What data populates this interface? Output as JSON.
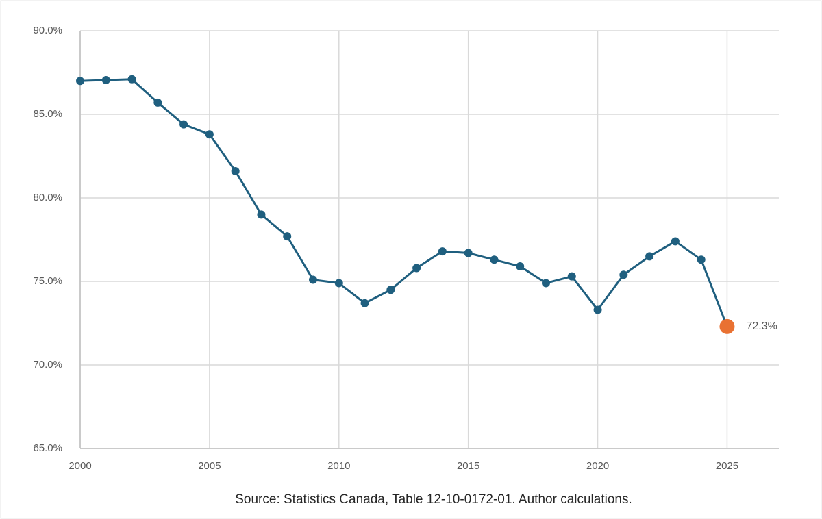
{
  "chart_data": {
    "type": "line",
    "x": [
      2000,
      2001,
      2002,
      2003,
      2004,
      2005,
      2006,
      2007,
      2008,
      2009,
      2010,
      2011,
      2012,
      2013,
      2014,
      2015,
      2016,
      2017,
      2018,
      2019,
      2020,
      2021,
      2022,
      2023,
      2024,
      2025
    ],
    "values": [
      87.0,
      87.05,
      87.1,
      85.7,
      84.4,
      83.8,
      81.6,
      79.0,
      77.7,
      75.1,
      74.9,
      73.7,
      74.5,
      75.8,
      76.8,
      76.7,
      76.3,
      75.9,
      74.9,
      75.3,
      73.3,
      75.4,
      76.5,
      77.4,
      76.3,
      72.3
    ],
    "value_labels": [
      null,
      null,
      null,
      null,
      null,
      null,
      null,
      null,
      null,
      null,
      null,
      null,
      null,
      null,
      null,
      null,
      null,
      null,
      null,
      null,
      null,
      null,
      null,
      null,
      null,
      "72.3%"
    ],
    "color": "#1f5f7f",
    "point_colors": [
      "#1f5f7f",
      "#1f5f7f",
      "#1f5f7f",
      "#1f5f7f",
      "#1f5f7f",
      "#1f5f7f",
      "#1f5f7f",
      "#1f5f7f",
      "#1f5f7f",
      "#1f5f7f",
      "#1f5f7f",
      "#1f5f7f",
      "#1f5f7f",
      "#1f5f7f",
      "#1f5f7f",
      "#1f5f7f",
      "#1f5f7f",
      "#1f5f7f",
      "#1f5f7f",
      "#1f5f7f",
      "#1f5f7f",
      "#1f5f7f",
      "#1f5f7f",
      "#1f5f7f",
      "#1f5f7f",
      "#e97132"
    ],
    "xlim": [
      2000,
      2027
    ],
    "xticks": [
      2000,
      2005,
      2010,
      2015,
      2020,
      2025
    ],
    "ylim": [
      65,
      90
    ],
    "yticks": [
      {
        "value": 65,
        "label": "65.0%"
      },
      {
        "value": 70,
        "label": "70.0%"
      },
      {
        "value": 75,
        "label": "75.0%"
      },
      {
        "value": 80,
        "label": "80.0%"
      },
      {
        "value": 85,
        "label": "85.0%"
      },
      {
        "value": 90,
        "label": "90.0%"
      }
    ],
    "grid": true,
    "source": "Source: Statistics Canada, Table 12-10-0172-01. Author calculations."
  }
}
